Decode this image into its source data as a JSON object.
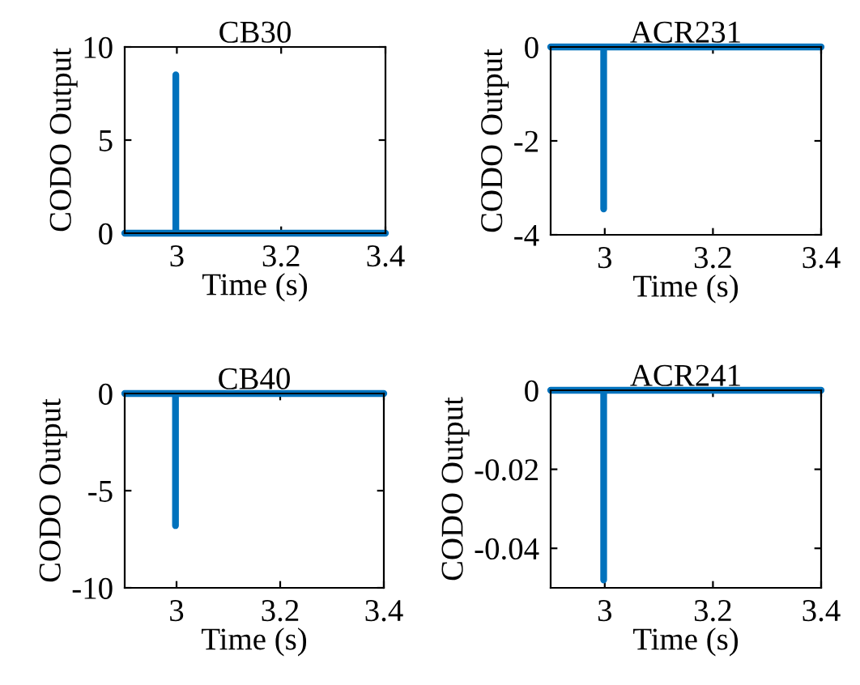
{
  "chart_data": [
    {
      "type": "line",
      "title": "CB30",
      "xlabel": "Time (s)",
      "ylabel": "CODO Output",
      "x": [
        2.9,
        2.998,
        2.998,
        2.998,
        3.4
      ],
      "series": [
        {
          "color": "#0072bd",
          "values": [
            0,
            0,
            8.5,
            0,
            0
          ]
        }
      ],
      "xlim": [
        2.9,
        3.4
      ],
      "xticks": [
        3,
        3.2,
        3.4
      ],
      "ylim": [
        0,
        10
      ],
      "yticks": [
        0,
        5,
        10
      ]
    },
    {
      "type": "line",
      "title": "ACR231",
      "xlabel": "Time (s)",
      "ylabel": "CODO Output",
      "x": [
        2.9,
        2.998,
        2.998,
        2.998,
        3.4
      ],
      "series": [
        {
          "color": "#0072bd",
          "values": [
            0,
            0,
            -3.45,
            0,
            0
          ]
        }
      ],
      "xlim": [
        2.9,
        3.4
      ],
      "xticks": [
        3,
        3.2,
        3.4
      ],
      "ylim": [
        -4,
        0
      ],
      "yticks": [
        {
          "value": -4,
          "label": "-4"
        },
        {
          "value": -2,
          "label": "-2"
        },
        0
      ]
    },
    {
      "type": "line",
      "title": "CB40",
      "xlabel": "Time (s)",
      "ylabel": "CODO Output",
      "x": [
        2.9,
        2.998,
        2.998,
        2.998,
        3.4
      ],
      "series": [
        {
          "color": "#0072bd",
          "values": [
            0,
            0,
            -6.8,
            0,
            0
          ]
        }
      ],
      "xlim": [
        2.9,
        3.4
      ],
      "xticks": [
        3,
        3.2,
        3.4
      ],
      "ylim": [
        -10,
        0
      ],
      "yticks": [
        {
          "value": -10,
          "label": "-10"
        },
        {
          "value": -5,
          "label": "-5"
        },
        0
      ]
    },
    {
      "type": "line",
      "title": "ACR241",
      "xlabel": "Time (s)",
      "ylabel": "CODO Output",
      "x": [
        2.9,
        2.998,
        2.998,
        2.998,
        3.4
      ],
      "series": [
        {
          "color": "#0072bd",
          "values": [
            0,
            0,
            -0.048,
            0,
            0
          ]
        }
      ],
      "xlim": [
        2.9,
        3.4
      ],
      "xticks": [
        3,
        3.2,
        3.4
      ],
      "ylim": [
        -0.05,
        0
      ],
      "yticks": [
        {
          "value": -0.04,
          "label": "-0.04"
        },
        {
          "value": -0.02,
          "label": "-0.02"
        },
        0
      ]
    }
  ]
}
